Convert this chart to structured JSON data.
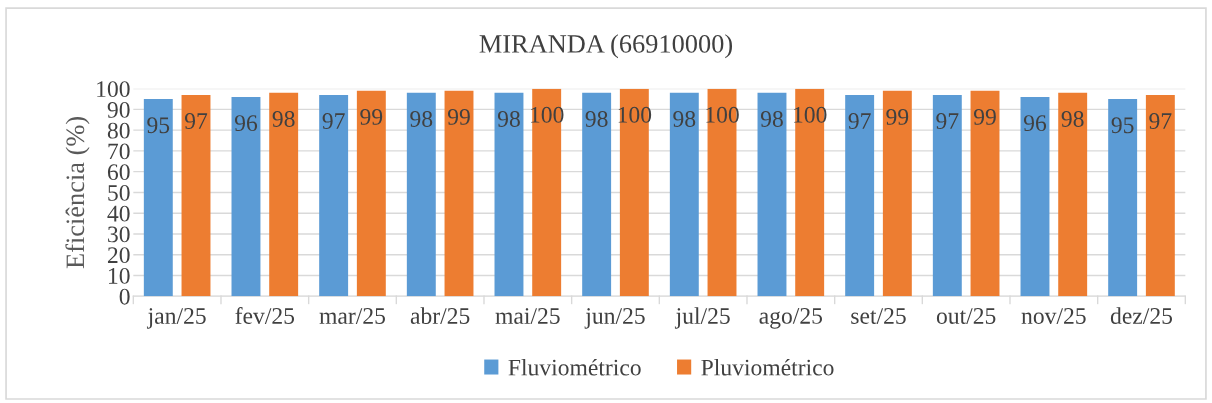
{
  "chart_data": {
    "type": "bar",
    "title": "MIRANDA (66910000)",
    "ylabel": "Eficiência (%)",
    "categories": [
      "jan/25",
      "fev/25",
      "mar/25",
      "abr/25",
      "mai/25",
      "jun/25",
      "jul/25",
      "ago/25",
      "set/25",
      "out/25",
      "nov/25",
      "dez/25"
    ],
    "series": [
      {
        "name": "Fluviométrico",
        "color": "#5b9bd5",
        "values": [
          95,
          96,
          97,
          98,
          98,
          98,
          98,
          98,
          97,
          97,
          96,
          95
        ]
      },
      {
        "name": "Pluviométrico",
        "color": "#ed7d31",
        "values": [
          97,
          98,
          99,
          99,
          100,
          100,
          100,
          100,
          99,
          99,
          98,
          97
        ]
      }
    ],
    "ylim": [
      0,
      100
    ],
    "yticks": [
      0,
      10,
      20,
      30,
      40,
      50,
      60,
      70,
      80,
      90,
      100
    ],
    "grid": "y",
    "legend": "bottom",
    "data_labels": true
  }
}
